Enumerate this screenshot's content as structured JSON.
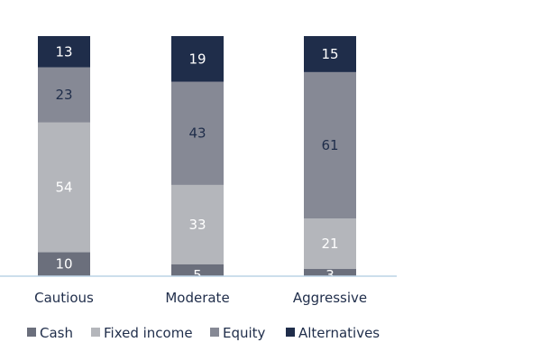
{
  "chart_data": {
    "type": "bar",
    "stacked": true,
    "categories": [
      "Cautious",
      "Moderate",
      "Aggressive"
    ],
    "series": [
      {
        "name": "Cash",
        "color": "#6b6f7c",
        "values": [
          10,
          5,
          3
        ],
        "label_color": "#ffffff"
      },
      {
        "name": "Fixed income",
        "color": "#b4b6bb",
        "values": [
          54,
          33,
          21
        ],
        "label_color": "#ffffff"
      },
      {
        "name": "Equity",
        "color": "#868995",
        "values": [
          23,
          43,
          61
        ],
        "label_color": "#1f2d4a"
      },
      {
        "name": "Alternatives",
        "color": "#1f2d4a",
        "values": [
          13,
          19,
          15
        ],
        "label_color": "#ffffff"
      }
    ],
    "legend_position": "bottom-left",
    "grid": false
  }
}
